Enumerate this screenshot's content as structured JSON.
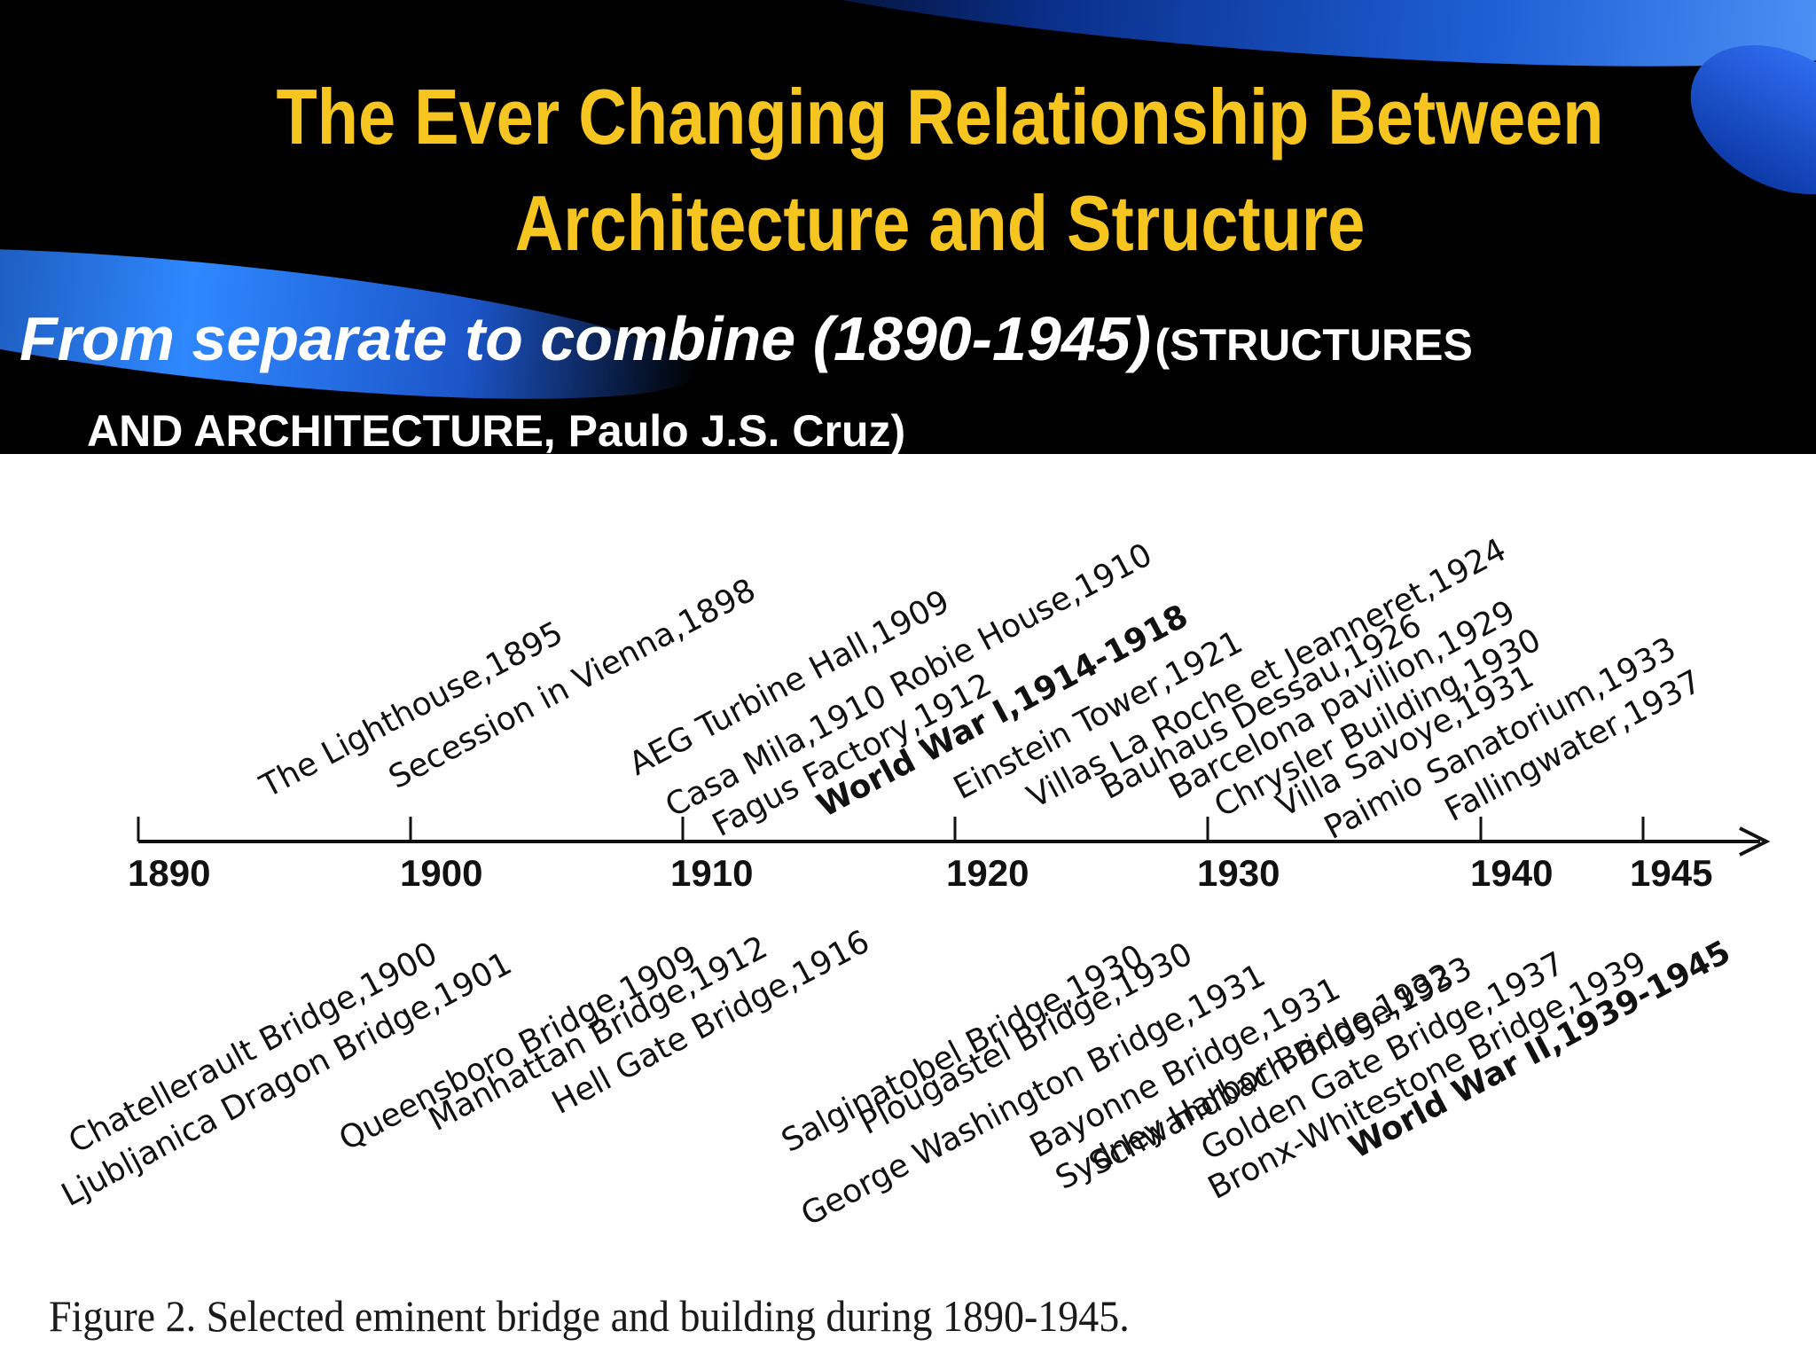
{
  "slide": {
    "title_line1": "The Ever Changing Relationship Between",
    "title_line2": "Architecture and Structure",
    "subtitle_italic": "From separate to combine (1890-1945)",
    "subtitle_ref_line1": "(STRUCTURES",
    "subtitle_ref_line2": "AND ARCHITECTURE, Paulo J.S. Cruz)"
  },
  "colors": {
    "title": "#f7c51f",
    "header_background": "#000000",
    "swoosh_blue": "#1e5fd6"
  },
  "timeline": {
    "years": [
      "1890",
      "1900",
      "1910",
      "1920",
      "1930",
      "1940",
      "1945"
    ],
    "buildings_above": [
      {
        "text": "The Lighthouse,1895",
        "bold": false
      },
      {
        "text": "Secession in Vienna,1898",
        "bold": false
      },
      {
        "text": "AEG Turbine Hall,1909",
        "bold": false
      },
      {
        "text": "Casa Mila,1910 Robie House,1910",
        "bold": false
      },
      {
        "text": "Fagus Factory,1912",
        "bold": false
      },
      {
        "text": "World War I,1914-1918",
        "bold": true
      },
      {
        "text": "Einstein Tower,1921",
        "bold": false
      },
      {
        "text": "Villas La Roche et Jeanneret,1924",
        "bold": false
      },
      {
        "text": "Bauhaus Dessau,1926",
        "bold": false
      },
      {
        "text": "Barcelona pavilion,1929",
        "bold": false
      },
      {
        "text": "Chrysler Building,1930",
        "bold": false
      },
      {
        "text": "Villa Savoye,1931",
        "bold": false
      },
      {
        "text": "Paimio Sanatorium,1933",
        "bold": false
      },
      {
        "text": "Fallingwater,1937",
        "bold": false
      }
    ],
    "bridges_below": [
      {
        "text": "Chatellerault Bridge,1900",
        "bold": false
      },
      {
        "text": "Ljubljanica Dragon Bridge,1901",
        "bold": false
      },
      {
        "text": "Queensboro Bridge,1909",
        "bold": false
      },
      {
        "text": "Manhattan Bridge,1912",
        "bold": false
      },
      {
        "text": "Hell Gate Bridge,1916",
        "bold": false
      },
      {
        "text": "Salginatobel Bridge,1930",
        "bold": false
      },
      {
        "text": "Plougastel Bridge,1930",
        "bold": false
      },
      {
        "text": "George Washington Bridge,1931",
        "bold": false
      },
      {
        "text": "Bayonne Bridge,1931",
        "bold": false
      },
      {
        "text": "Sydney Harbor Bridge,1932",
        "bold": false
      },
      {
        "text": "Schwandbach Bridge,1933",
        "bold": false
      },
      {
        "text": "Golden Gate Bridge,1937",
        "bold": false
      },
      {
        "text": "Bronx-Whitestone Bridge,1939",
        "bold": false
      },
      {
        "text": "World War II,1939-1945",
        "bold": true
      }
    ]
  },
  "figure_caption": "Figure 2. Selected eminent bridge and building during 1890-1945."
}
